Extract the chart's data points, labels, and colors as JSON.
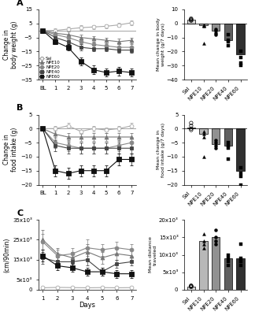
{
  "panel_A": {
    "days": [
      "BL",
      "1",
      "2",
      "3",
      "4",
      "5",
      "6",
      "7"
    ],
    "sal": [
      0,
      0,
      1,
      2,
      2.5,
      3,
      4,
      5.5
    ],
    "npe10": [
      0,
      -2,
      -3,
      -5,
      -6,
      -7,
      -8,
      -7
    ],
    "npe20": [
      0,
      -3,
      -5,
      -8,
      -10,
      -11,
      -12,
      -12
    ],
    "npe40": [
      0,
      -5,
      -8,
      -12,
      -13,
      -13,
      -14,
      -14
    ],
    "npe60": [
      0,
      -8,
      -12,
      -22,
      -28,
      -30,
      -29,
      -30
    ],
    "sal_err": [
      0,
      1.5,
      1.5,
      1.5,
      1.5,
      1.5,
      1.5,
      1.5
    ],
    "npe10_err": [
      0,
      1.5,
      2,
      2,
      2,
      2,
      2,
      2
    ],
    "npe20_err": [
      0,
      2,
      2,
      2,
      2,
      2,
      2,
      2
    ],
    "npe40_err": [
      0,
      2,
      2,
      2,
      2,
      2,
      2,
      2
    ],
    "npe60_err": [
      0,
      2,
      2,
      3,
      3,
      3,
      3,
      3
    ],
    "ylim": [
      -35,
      15
    ],
    "yticks": [
      -35,
      -25,
      -15,
      -5,
      5,
      15
    ],
    "ylabel": "Change in\nbody weight (g)"
  },
  "panel_A_bar": {
    "categories": [
      "Sal",
      "NPE10",
      "NPE20",
      "NPE40",
      "NPE60"
    ],
    "means": [
      2.5,
      -1.5,
      -5,
      -12,
      -22
    ],
    "colors": [
      "#d3d3d3",
      "#b8b8b8",
      "#919191",
      "#606060",
      "#303030"
    ],
    "ylim": [
      -40,
      10
    ],
    "yticks": [
      -40,
      -30,
      -20,
      -10,
      0,
      10
    ],
    "ylabel": "Mean change in body\nweight (g/7 days)",
    "scatter_sal": [
      3.5,
      2.5,
      2.0,
      3.0
    ],
    "scatter_npe10": [
      -1.0,
      -14.0,
      -2.0,
      -1.5
    ],
    "scatter_npe20": [
      -4.0,
      -8.0,
      -5.0,
      -7.0
    ],
    "scatter_npe40": [
      -8.0,
      -13.0,
      -12.0,
      -16.0
    ],
    "scatter_npe60": [
      -20.0,
      -28.0,
      -30.0,
      -24.0
    ],
    "scatter_markers": [
      "o",
      "^",
      "o",
      "s",
      "s"
    ],
    "scatter_sizes": [
      10,
      8,
      8,
      8,
      10
    ]
  },
  "panel_B": {
    "days": [
      "BL",
      "1",
      "2",
      "3",
      "4",
      "5",
      "6",
      "7"
    ],
    "sal": [
      0,
      0,
      1,
      -1,
      0,
      -0.5,
      0,
      1
    ],
    "npe10": [
      0,
      -2,
      -3,
      -3,
      -3,
      -3,
      -3,
      -3
    ],
    "npe20": [
      0,
      -5,
      -6,
      -7,
      -7,
      -7,
      -6,
      -5
    ],
    "npe40": [
      0,
      -6,
      -7,
      -7,
      -7,
      -7,
      -7,
      -7
    ],
    "npe60": [
      0,
      -15,
      -16,
      -15,
      -15,
      -15,
      -11,
      -11
    ],
    "sal_err": [
      0,
      1,
      1,
      1,
      1,
      1,
      1,
      1
    ],
    "npe10_err": [
      0,
      1.5,
      1.5,
      1.5,
      1.5,
      1.5,
      1.5,
      1.5
    ],
    "npe20_err": [
      0,
      2,
      2,
      2,
      2,
      2,
      2,
      2
    ],
    "npe40_err": [
      0,
      2,
      2,
      2,
      2,
      2,
      2,
      2
    ],
    "npe60_err": [
      0,
      2,
      2,
      2,
      2,
      2,
      2,
      2
    ],
    "ylim": [
      -20,
      5
    ],
    "yticks": [
      -20,
      -15,
      -10,
      -5,
      0,
      5
    ],
    "ylabel": "Change in\nfood intake (g)"
  },
  "panel_B_bar": {
    "categories": [
      "Sal",
      "NPE10",
      "NPE20",
      "NPE40",
      "NPE60"
    ],
    "means": [
      0.5,
      -2,
      -5.5,
      -6,
      -15
    ],
    "colors": [
      "#d3d3d3",
      "#b8b8b8",
      "#919191",
      "#606060",
      "#303030"
    ],
    "ylim": [
      -20,
      5
    ],
    "yticks": [
      -20,
      -15,
      -10,
      -5,
      0,
      5
    ],
    "ylabel": "Mean change in\nfood intake (g/7 days)",
    "scatter_sal": [
      2.0,
      1.0,
      0.0,
      -0.5
    ],
    "scatter_npe10": [
      -1.0,
      -2.0,
      -10.0,
      -3.0
    ],
    "scatter_npe20": [
      -4.0,
      -5.0,
      -6.0,
      -7.0
    ],
    "scatter_npe40": [
      -5.0,
      -7.0,
      -11.0,
      -6.0
    ],
    "scatter_npe60": [
      -14.0,
      -17.0,
      -20.0,
      -16.0
    ],
    "scatter_markers": [
      "o",
      "^",
      "o",
      "s",
      "s"
    ],
    "scatter_sizes": [
      10,
      8,
      8,
      8,
      10
    ]
  },
  "panel_C": {
    "days": [
      "1",
      "2",
      "3",
      "4",
      "5",
      "6",
      "7"
    ],
    "sal": [
      1000,
      1200,
      1100,
      1000,
      1100,
      1000,
      1100
    ],
    "npe10": [
      25000,
      18000,
      16000,
      19000,
      16000,
      18000,
      17000
    ],
    "npe20": [
      24000,
      17000,
      18000,
      21000,
      20000,
      21000,
      20000
    ],
    "npe40": [
      16000,
      14000,
      14000,
      15000,
      9000,
      13000,
      14000
    ],
    "npe60": [
      17000,
      12000,
      11000,
      9000,
      9000,
      8000,
      8000
    ],
    "sal_err": [
      500,
      500,
      500,
      500,
      500,
      500,
      500
    ],
    "npe10_err": [
      5000,
      3000,
      3000,
      4000,
      3000,
      3000,
      3000
    ],
    "npe20_err": [
      4000,
      3000,
      3000,
      4000,
      3000,
      3000,
      3000
    ],
    "npe40_err": [
      3000,
      2000,
      2000,
      3000,
      2000,
      2000,
      2000
    ],
    "npe60_err": [
      3000,
      2000,
      2000,
      2000,
      2000,
      2000,
      2000
    ],
    "ylim": [
      0,
      35000
    ],
    "yticks": [
      0,
      5000,
      15000,
      25000,
      35000
    ],
    "yticklabels": [
      "0",
      "5x10³",
      "15x10³",
      "25x10³",
      "35x10³"
    ],
    "ylabel": "Distance traveled\n(cm/90min)"
  },
  "panel_C_bar": {
    "categories": [
      "Sal",
      "NPE10",
      "NPE20",
      "NPE40",
      "NPE60"
    ],
    "means": [
      1000,
      14000,
      15000,
      9000,
      9000
    ],
    "colors": [
      "#d3d3d3",
      "#b8b8b8",
      "#919191",
      "#606060",
      "#303030"
    ],
    "ylim": [
      0,
      20000
    ],
    "yticks": [
      0,
      5000,
      10000,
      15000,
      20000
    ],
    "yticklabels": [
      "0",
      "5x10³",
      "10x10³",
      "15x10³",
      "20x10³"
    ],
    "ylabel": "Mean distance\ntraveled",
    "scatter_sal": [
      800,
      1000,
      1200,
      1100
    ],
    "scatter_npe10": [
      13000,
      16000,
      14000,
      12000
    ],
    "scatter_npe20": [
      14000,
      17000,
      15000,
      13000
    ],
    "scatter_npe40": [
      8000,
      10000,
      9000,
      7000
    ],
    "scatter_npe60": [
      8000,
      13000,
      9000,
      7000
    ],
    "scatter_markers": [
      "o",
      "^",
      "o",
      "s",
      "s"
    ],
    "scatter_sizes": [
      10,
      8,
      8,
      8,
      10
    ]
  },
  "series_styles": {
    "sal": {
      "color": "#aaaaaa",
      "marker": "o",
      "mfc": "white",
      "ms": 3.5,
      "lw": 0.8,
      "mew": 0.6
    },
    "npe10": {
      "color": "#777777",
      "marker": "^",
      "mfc": "#777777",
      "ms": 3.5,
      "lw": 0.8,
      "mew": 0.6
    },
    "npe20": {
      "color": "#888888",
      "marker": "o",
      "mfc": "#888888",
      "ms": 3.5,
      "lw": 0.8,
      "mew": 0.6
    },
    "npe40": {
      "color": "#444444",
      "marker": "s",
      "mfc": "#444444",
      "ms": 3.5,
      "lw": 0.8,
      "mew": 0.6
    },
    "npe60": {
      "color": "#111111",
      "marker": "s",
      "mfc": "#111111",
      "ms": 4.5,
      "lw": 0.8,
      "mew": 0.6
    }
  }
}
